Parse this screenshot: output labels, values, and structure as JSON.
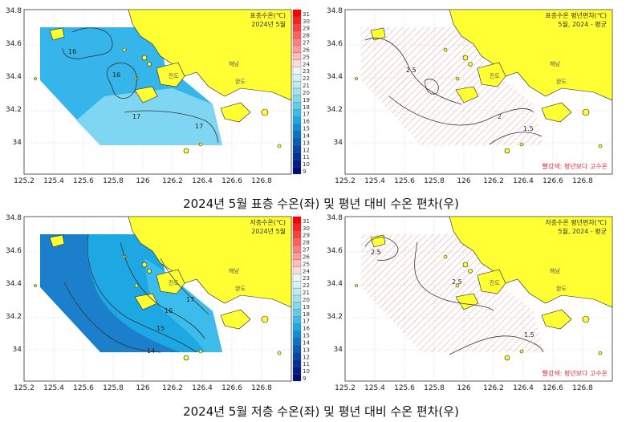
{
  "colors": {
    "land": "#ffff33",
    "hatch": "#e8a0a0",
    "grid": "#a0a0a0",
    "contour": "#333333",
    "note": "#e0303a"
  },
  "axes": {
    "x_ticks": [
      "125.2",
      "125.4",
      "125.6",
      "125.8",
      "126",
      "126.2",
      "126.4",
      "126.6",
      "126.8"
    ],
    "y_ticks": [
      "34.8",
      "34.6",
      "34.4",
      "34.2",
      "34"
    ]
  },
  "colorbar": {
    "labels": [
      "31",
      "30",
      "29",
      "28",
      "27",
      "26",
      "25",
      "24",
      "23",
      "22",
      "21",
      "20",
      "19",
      "18",
      "17",
      "16",
      "15",
      "14",
      "13",
      "12",
      "11",
      "10",
      "9"
    ],
    "colors": [
      "#ff0000",
      "#ff2020",
      "#ff4040",
      "#ff6060",
      "#ff7f7f",
      "#ff9d9d",
      "#ffbcbc",
      "#ffdada",
      "#eef6f8",
      "#d9f1f5",
      "#bfeaf2",
      "#a3e2ef",
      "#84d9ee",
      "#61cdeb",
      "#3cbcea",
      "#1ea8e3",
      "#0f8ed6",
      "#0a74c6",
      "#0a5cb6",
      "#0745a6",
      "#053097",
      "#031d88",
      "#010c7a"
    ]
  },
  "places": {
    "jindo": "진도",
    "haenam": "해남",
    "wando": "완도"
  },
  "panels": {
    "surface_temp": {
      "title1": "표층수온(℃)",
      "title2": "2024년 5월",
      "contour_labels": [
        "16",
        "16",
        "17",
        "17"
      ]
    },
    "surface_anom": {
      "title1": "표층수온 평년편차(℃)",
      "title2": "5월, 2024 - 평균",
      "contour_labels": [
        "2.5",
        "2",
        "1.5"
      ],
      "note": "빨강색: 평년보다 고수온"
    },
    "bottom_temp": {
      "title1": "저층수온(℃)",
      "title2": "2024년 5월",
      "contour_labels": [
        "17",
        "16",
        "15",
        "14"
      ]
    },
    "bottom_anom": {
      "title1": "저층수온 평년편차(℃)",
      "title2": "5월, 2024 - 평균",
      "contour_labels": [
        "2.5",
        "2.5",
        "1.5"
      ],
      "note": "빨강색: 평년보다 고수온"
    }
  },
  "captions": {
    "top": "2024년 5월 표층 수온(좌) 및 평년 대비 수온 편차(우)",
    "bottom": "2024년 5월 저층 수온(좌) 및 평년 대비 수온 편차(우)"
  }
}
